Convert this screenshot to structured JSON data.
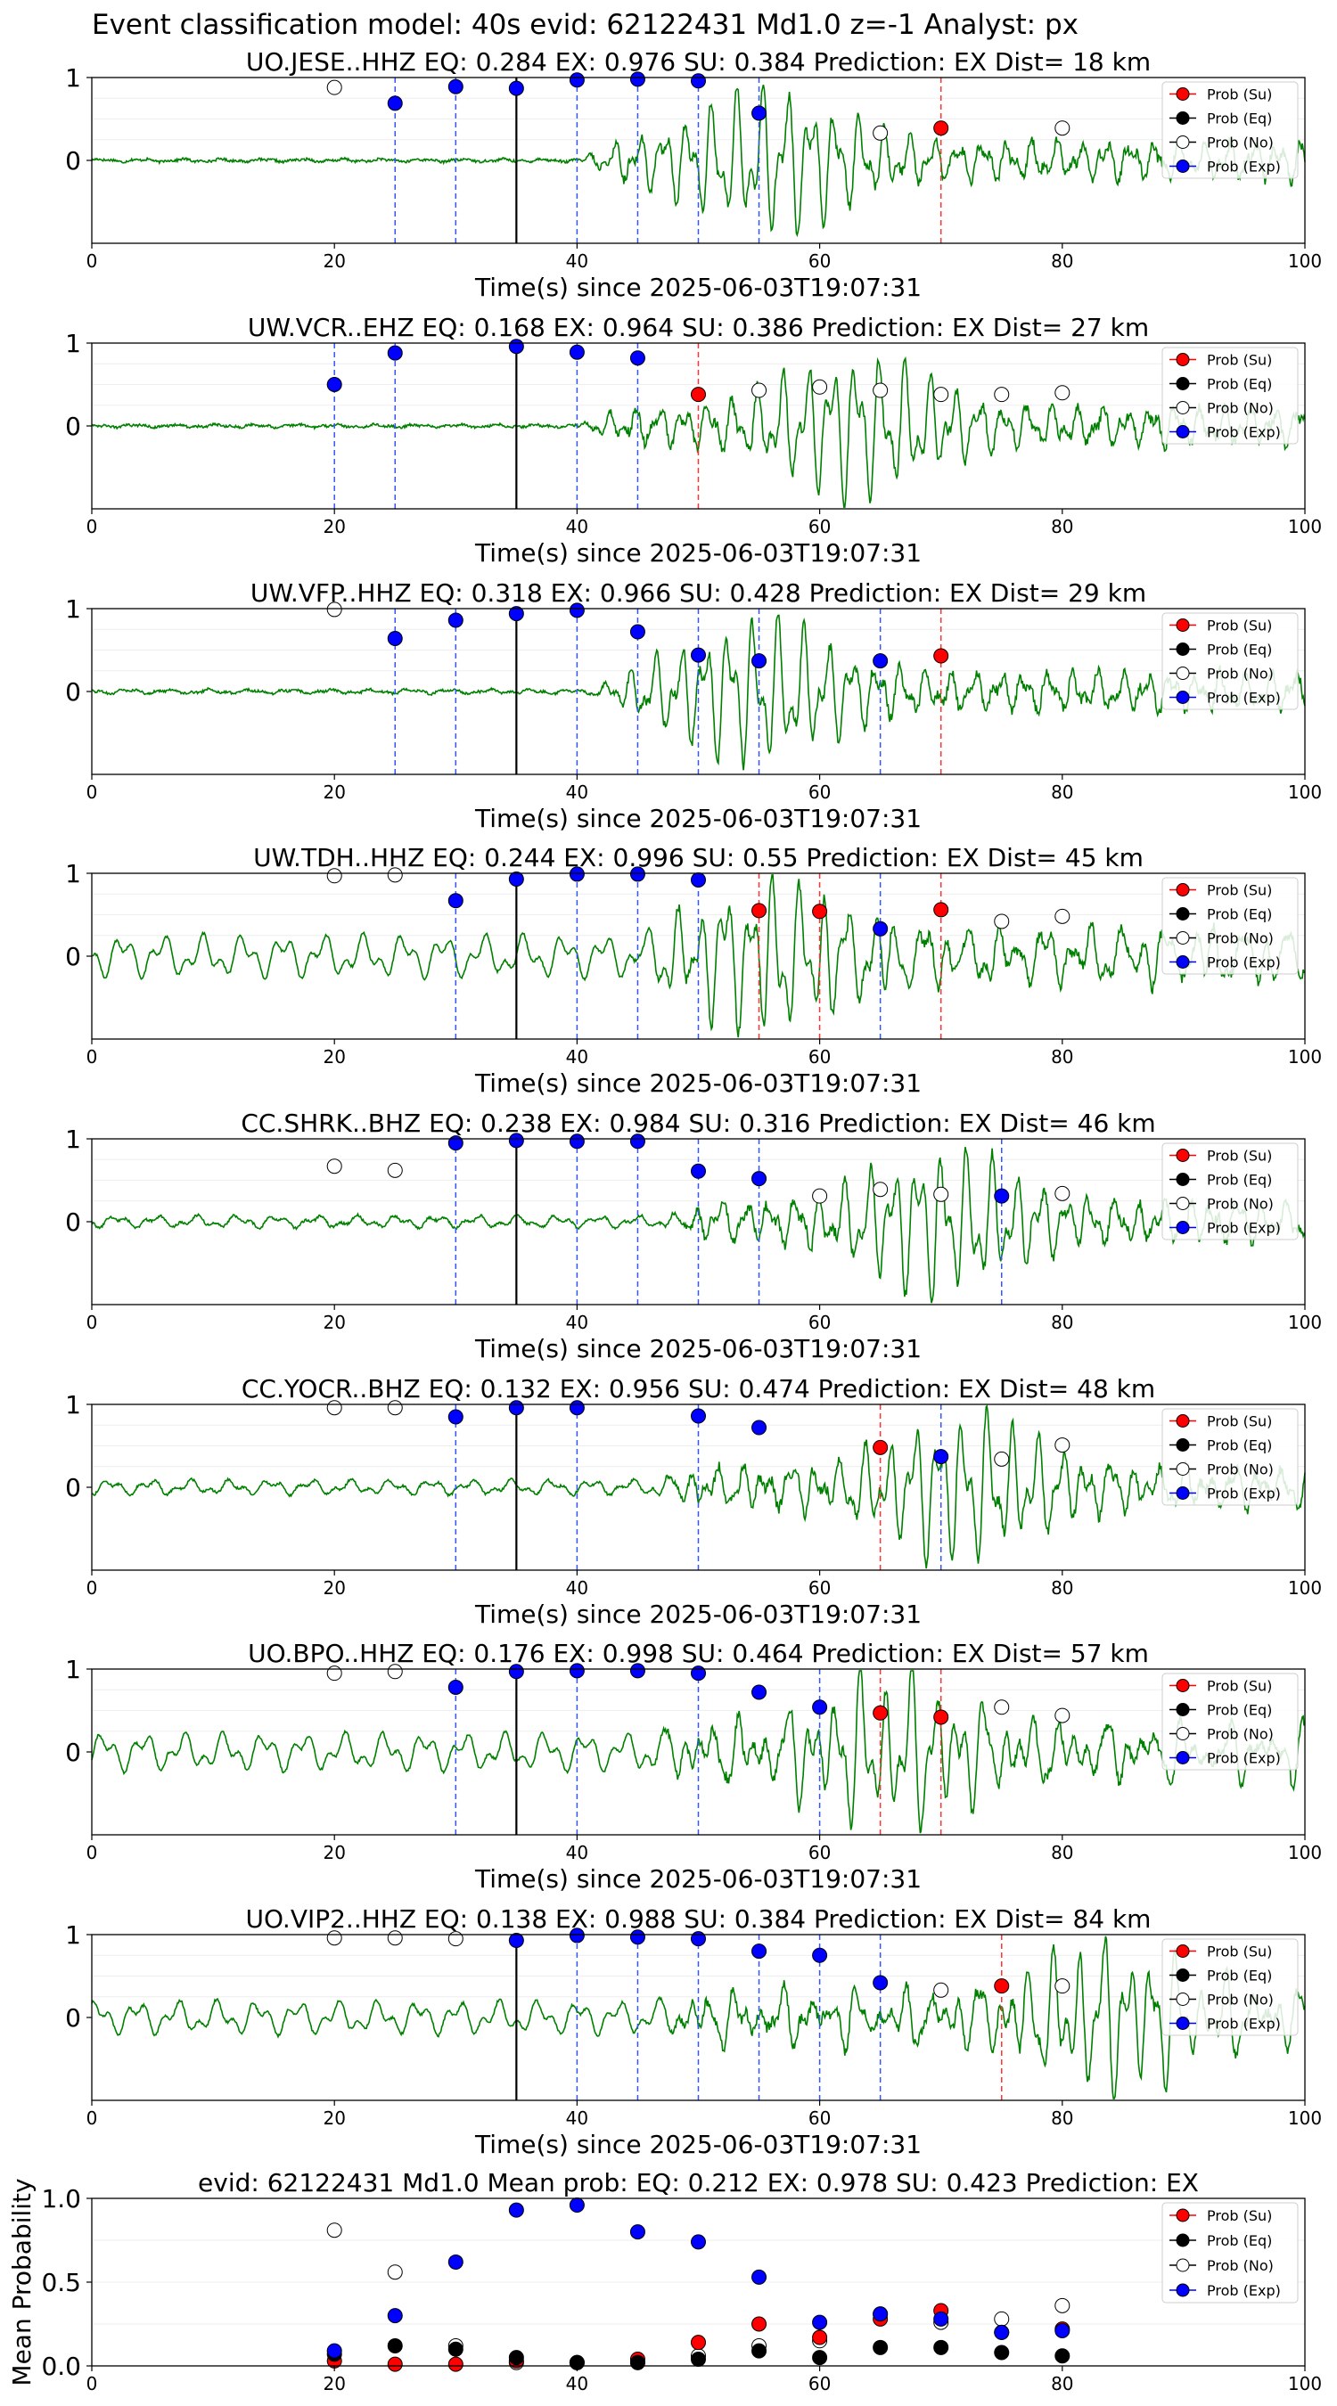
{
  "suptitle": "Event classification model: 40s evid: 62122431 Md1.0 z=-1 Analyst: px",
  "xlabel": "Time(s) since 2025-06-03T19:07:31",
  "legend": [
    "Prob (Su)",
    "Prob (Eq)",
    "Prob (No)",
    "Prob (Exp)"
  ],
  "colors": {
    "su": "#ff0000",
    "eq": "#000000",
    "no": "#ffffff",
    "exp": "#0000ff",
    "trace": "#008000",
    "exp_line": "#3355ff",
    "su_line": "#ff3333"
  },
  "chart_data": [
    {
      "type": "line",
      "station": "UO.JESE..HHZ",
      "title": "UO.JESE..HHZ   EQ: 0.284  EX: 0.976  SU: 0.384   Prediction: EX    Dist= 18 km",
      "xlim": [
        0,
        100
      ],
      "xticks": [
        0,
        20,
        40,
        60,
        80,
        100
      ],
      "yticks": [
        "1",
        "0"
      ],
      "pick_line": 35,
      "exp_lines": [
        25,
        30,
        40,
        45,
        50,
        55
      ],
      "su_lines": [
        70
      ],
      "onset": 40,
      "burst": 56,
      "amp": 1.0,
      "noise": 0.02,
      "points": {
        "exp": [
          [
            25,
            0.69
          ],
          [
            30,
            0.89
          ],
          [
            35,
            0.87
          ],
          [
            40,
            0.97
          ],
          [
            45,
            0.98
          ],
          [
            50,
            0.96
          ],
          [
            55,
            0.57
          ]
        ],
        "no": [
          [
            20,
            0.88
          ],
          [
            65,
            0.33
          ],
          [
            80,
            0.39
          ]
        ],
        "su": [
          [
            70,
            0.39
          ]
        ]
      }
    },
    {
      "type": "line",
      "station": "UW.VCR..EHZ",
      "title": "UW.VCR..EHZ   EQ: 0.168  EX: 0.964  SU: 0.386   Prediction: EX    Dist= 27 km",
      "xlim": [
        0,
        100
      ],
      "xticks": [
        0,
        20,
        40,
        60,
        80,
        100
      ],
      "yticks": [
        "1",
        "0"
      ],
      "pick_line": 35,
      "exp_lines": [
        20,
        25,
        40,
        45
      ],
      "su_lines": [
        50
      ],
      "onset": 40,
      "burst": 63,
      "amp": 1.0,
      "noise": 0.02,
      "points": {
        "exp": [
          [
            20,
            0.5
          ],
          [
            25,
            0.88
          ],
          [
            35,
            0.96
          ],
          [
            40,
            0.89
          ],
          [
            45,
            0.82
          ]
        ],
        "no": [
          [
            55,
            0.43
          ],
          [
            60,
            0.47
          ],
          [
            65,
            0.43
          ],
          [
            70,
            0.38
          ],
          [
            75,
            0.38
          ],
          [
            80,
            0.4
          ]
        ],
        "su": [
          [
            50,
            0.38
          ]
        ]
      }
    },
    {
      "type": "line",
      "station": "UW.VFP..HHZ",
      "title": "UW.VFP..HHZ   EQ: 0.318  EX: 0.966  SU: 0.428   Prediction: EX    Dist= 29 km",
      "xlim": [
        0,
        100
      ],
      "xticks": [
        0,
        20,
        40,
        60,
        80,
        100
      ],
      "yticks": [
        "1",
        "0"
      ],
      "pick_line": 35,
      "exp_lines": [
        25,
        30,
        40,
        45,
        50,
        55,
        65
      ],
      "su_lines": [
        70
      ],
      "onset": 41,
      "burst": 55,
      "amp": 1.0,
      "noise": 0.03,
      "points": {
        "exp": [
          [
            25,
            0.64
          ],
          [
            30,
            0.86
          ],
          [
            35,
            0.94
          ],
          [
            40,
            0.98
          ],
          [
            45,
            0.72
          ],
          [
            50,
            0.44
          ],
          [
            55,
            0.37
          ],
          [
            65,
            0.37
          ]
        ],
        "no": [
          [
            20,
            0.99
          ]
        ],
        "su": [
          [
            70,
            0.43
          ]
        ]
      }
    },
    {
      "type": "line",
      "station": "UW.TDH..HHZ",
      "title": "UW.TDH..HHZ   EQ: 0.244  EX: 0.996  SU: 0.55   Prediction: EX    Dist= 45 km",
      "xlim": [
        0,
        100
      ],
      "xticks": [
        0,
        20,
        40,
        60,
        80,
        100
      ],
      "yticks": [
        "1",
        "0"
      ],
      "pick_line": 35,
      "exp_lines": [
        30,
        40,
        45,
        50,
        65
      ],
      "su_lines": [
        55,
        60,
        70
      ],
      "onset": 44,
      "burst": 56,
      "amp": 1.0,
      "noise": 0.28,
      "points": {
        "exp": [
          [
            30,
            0.67
          ],
          [
            35,
            0.93
          ],
          [
            40,
            0.99
          ],
          [
            45,
            0.99
          ],
          [
            50,
            0.92
          ],
          [
            65,
            0.33
          ]
        ],
        "no": [
          [
            20,
            0.97
          ],
          [
            25,
            0.98
          ],
          [
            75,
            0.42
          ],
          [
            80,
            0.48
          ]
        ],
        "su": [
          [
            55,
            0.55
          ],
          [
            60,
            0.54
          ],
          [
            70,
            0.56
          ]
        ]
      }
    },
    {
      "type": "line",
      "station": "CC.SHRK..BHZ",
      "title": "CC.SHRK..BHZ   EQ: 0.238  EX: 0.984  SU: 0.316   Prediction: EX    Dist= 46 km",
      "xlim": [
        0,
        100
      ],
      "xticks": [
        0,
        20,
        40,
        60,
        80,
        100
      ],
      "yticks": [
        "1",
        "0"
      ],
      "pick_line": 35,
      "exp_lines": [
        30,
        40,
        45,
        50,
        55,
        75
      ],
      "su_lines": [],
      "onset": 47,
      "burst": 70,
      "amp": 1.0,
      "noise": 0.08,
      "points": {
        "exp": [
          [
            30,
            0.95
          ],
          [
            35,
            0.98
          ],
          [
            40,
            0.97
          ],
          [
            45,
            0.97
          ],
          [
            50,
            0.61
          ],
          [
            55,
            0.52
          ],
          [
            75,
            0.31
          ]
        ],
        "no": [
          [
            20,
            0.67
          ],
          [
            25,
            0.62
          ],
          [
            60,
            0.31
          ],
          [
            65,
            0.39
          ],
          [
            70,
            0.33
          ],
          [
            80,
            0.34
          ]
        ],
        "su": []
      }
    },
    {
      "type": "line",
      "station": "CC.YOCR..BHZ",
      "title": "CC.YOCR..BHZ   EQ: 0.132  EX: 0.956  SU: 0.474   Prediction: EX    Dist= 48 km",
      "xlim": [
        0,
        100
      ],
      "xticks": [
        0,
        20,
        40,
        60,
        80,
        100
      ],
      "yticks": [
        "1",
        "0"
      ],
      "pick_line": 35,
      "exp_lines": [
        30,
        40,
        50,
        70
      ],
      "su_lines": [
        65
      ],
      "onset": 46,
      "burst": 72,
      "amp": 1.0,
      "noise": 0.1,
      "points": {
        "exp": [
          [
            30,
            0.85
          ],
          [
            35,
            0.96
          ],
          [
            40,
            0.96
          ],
          [
            50,
            0.86
          ],
          [
            55,
            0.72
          ],
          [
            70,
            0.37
          ]
        ],
        "no": [
          [
            20,
            0.96
          ],
          [
            25,
            0.96
          ],
          [
            75,
            0.34
          ],
          [
            80,
            0.51
          ]
        ],
        "su": [
          [
            65,
            0.48
          ]
        ]
      }
    },
    {
      "type": "line",
      "station": "UO.BPO..HHZ",
      "title": "UO.BPO..HHZ   EQ: 0.176  EX: 0.998  SU: 0.464   Prediction: EX    Dist= 57 km",
      "xlim": [
        0,
        100
      ],
      "xticks": [
        0,
        20,
        40,
        60,
        80,
        100
      ],
      "yticks": [
        "1",
        "0"
      ],
      "pick_line": 35,
      "exp_lines": [
        30,
        40,
        50,
        60
      ],
      "su_lines": [
        65,
        70
      ],
      "onset": 45,
      "burst": 66,
      "amp": 1.0,
      "noise": 0.25,
      "points": {
        "exp": [
          [
            30,
            0.78
          ],
          [
            35,
            0.97
          ],
          [
            40,
            0.98
          ],
          [
            45,
            0.98
          ],
          [
            50,
            0.95
          ],
          [
            55,
            0.72
          ],
          [
            60,
            0.54
          ]
        ],
        "no": [
          [
            20,
            0.95
          ],
          [
            25,
            0.97
          ],
          [
            75,
            0.54
          ],
          [
            80,
            0.44
          ]
        ],
        "su": [
          [
            65,
            0.47
          ],
          [
            70,
            0.42
          ]
        ]
      }
    },
    {
      "type": "line",
      "station": "UO.VIP2..HHZ",
      "title": "UO.VIP2..HHZ   EQ: 0.138  EX: 0.988  SU: 0.384   Prediction: EX    Dist= 84 km",
      "xlim": [
        0,
        100
      ],
      "xticks": [
        0,
        20,
        40,
        60,
        80,
        100
      ],
      "yticks": [
        "1",
        "0"
      ],
      "pick_line": 35,
      "exp_lines": [
        40,
        45,
        50,
        55,
        60,
        65
      ],
      "su_lines": [
        75
      ],
      "onset": 46,
      "burst": 84,
      "amp": 1.0,
      "noise": 0.22,
      "points": {
        "exp": [
          [
            35,
            0.93
          ],
          [
            40,
            0.99
          ],
          [
            45,
            0.97
          ],
          [
            50,
            0.95
          ],
          [
            55,
            0.8
          ],
          [
            60,
            0.75
          ],
          [
            65,
            0.42
          ]
        ],
        "no": [
          [
            20,
            0.96
          ],
          [
            25,
            0.96
          ],
          [
            30,
            0.95
          ],
          [
            70,
            0.33
          ],
          [
            80,
            0.38
          ]
        ],
        "su": [
          [
            75,
            0.38
          ]
        ]
      }
    },
    {
      "type": "scatter",
      "station": "mean",
      "title": "evid: 62122431   Md1.0    Mean prob:    EQ: 0.212  EX: 0.978  SU: 0.423   Prediction: EX",
      "ylabel": "Mean Probability",
      "xlim": [
        0,
        100
      ],
      "ylim": [
        0,
        1
      ],
      "xticks": [
        0,
        20,
        40,
        60,
        80,
        100
      ],
      "yticks": [
        "0.0",
        "0.5",
        "1.0"
      ],
      "series": [
        {
          "name": "Prob (Su)",
          "key": "su",
          "x": [
            20,
            25,
            30,
            35,
            40,
            45,
            50,
            55,
            60,
            65,
            70,
            75,
            80
          ],
          "y": [
            0.03,
            0.01,
            0.01,
            0.03,
            0.02,
            0.04,
            0.14,
            0.25,
            0.17,
            0.28,
            0.33,
            0.2,
            0.22
          ]
        },
        {
          "name": "Prob (Eq)",
          "key": "eq",
          "x": [
            20,
            25,
            30,
            35,
            40,
            45,
            50,
            55,
            60,
            65,
            70,
            75,
            80
          ],
          "y": [
            0.07,
            0.12,
            0.1,
            0.05,
            0.02,
            0.02,
            0.04,
            0.09,
            0.05,
            0.11,
            0.11,
            0.08,
            0.06
          ]
        },
        {
          "name": "Prob (No)",
          "key": "no",
          "x": [
            20,
            25,
            30,
            35,
            40,
            45,
            50,
            55,
            60,
            65,
            70,
            75,
            80
          ],
          "y": [
            0.81,
            0.56,
            0.12,
            0.02,
            0.02,
            0.02,
            0.06,
            0.12,
            0.15,
            0.31,
            0.26,
            0.28,
            0.36
          ]
        },
        {
          "name": "Prob (Exp)",
          "key": "exp",
          "x": [
            20,
            25,
            30,
            35,
            40,
            45,
            50,
            55,
            60,
            65,
            70,
            75,
            80
          ],
          "y": [
            0.09,
            0.3,
            0.62,
            0.93,
            0.96,
            0.8,
            0.74,
            0.53,
            0.26,
            0.31,
            0.28,
            0.2,
            0.21
          ]
        }
      ]
    }
  ]
}
